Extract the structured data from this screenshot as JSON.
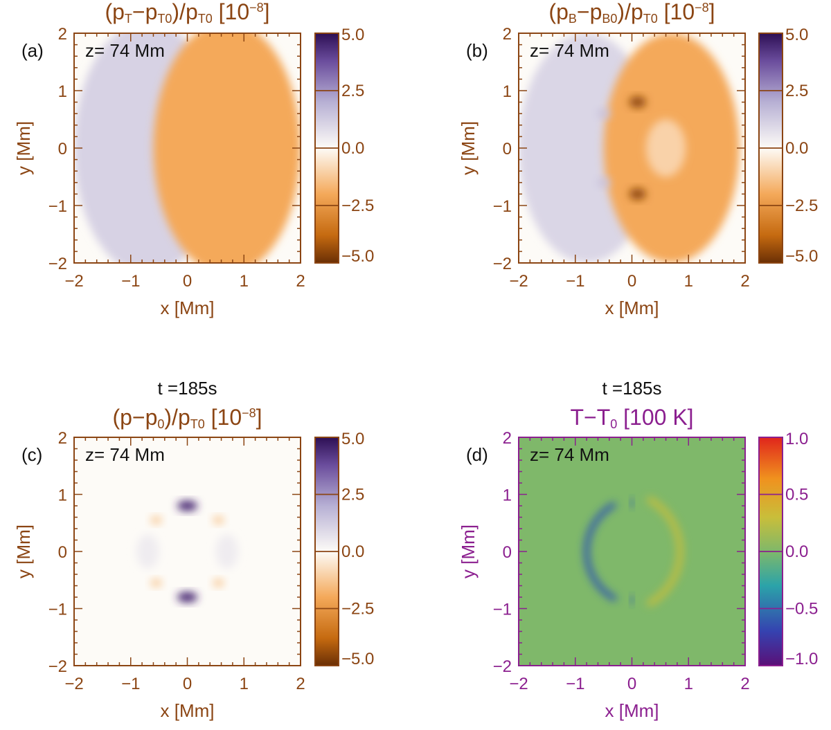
{
  "chart_data": [
    {
      "type": "heatmap",
      "panel_label": "(a)",
      "time_label": "",
      "title": "(p_T − p_T0)/p_T0 [10^−8]",
      "title_parts": {
        "open": "(p",
        "sub1": "T",
        "minus": "−p",
        "sub2": "T0",
        "slash": ")/p",
        "sub3": "T0",
        "bracket": " [10",
        "sup": "−8",
        "close": "]"
      },
      "annotation": "z= 74 Mm",
      "xlabel": "x [Mm]",
      "ylabel": "y [Mm]",
      "xlim": [
        -2,
        2
      ],
      "ylim": [
        -2,
        2
      ],
      "x_ticks": [
        "−2",
        "−1",
        "0",
        "1",
        "2"
      ],
      "y_ticks": [
        "−2",
        "−1",
        "0",
        "1",
        "2"
      ],
      "colorbar": {
        "range": [
          -5.0,
          5.0
        ],
        "ticks": [
          "5.0",
          "2.5",
          "0.0",
          "−2.5",
          "−5.0"
        ],
        "colormap": "PuOr"
      },
      "features": [
        {
          "kind": "blob",
          "x": -0.7,
          "y": 0.0,
          "sigma_x": 1.3,
          "sigma_y": 2.2,
          "value": 1.1
        },
        {
          "kind": "blob",
          "x": 0.7,
          "y": 0.0,
          "sigma_x": 1.3,
          "sigma_y": 2.2,
          "value": -2.0
        }
      ],
      "accent_color": "#8b4513"
    },
    {
      "type": "heatmap",
      "panel_label": "(b)",
      "time_label": "",
      "title": "(p_B − p_B0)/p_T0 [10^−8]",
      "title_parts": {
        "open": "(p",
        "sub1": "B",
        "minus": "−p",
        "sub2": "B0",
        "slash": ")/p",
        "sub3": "T0",
        "bracket": " [10",
        "sup": "−8",
        "close": "]"
      },
      "annotation": "z= 74 Mm",
      "xlabel": "x [Mm]",
      "ylabel": "y [Mm]",
      "xlim": [
        -2,
        2
      ],
      "ylim": [
        -2,
        2
      ],
      "x_ticks": [
        "−2",
        "−1",
        "0",
        "1",
        "2"
      ],
      "y_ticks": [
        "−2",
        "−1",
        "0",
        "1",
        "2"
      ],
      "colorbar": {
        "range": [
          -5.0,
          5.0
        ],
        "ticks": [
          "5.0",
          "2.5",
          "0.0",
          "−2.5",
          "−5.0"
        ],
        "colormap": "PuOr"
      },
      "features": [
        {
          "kind": "blob",
          "x": -0.8,
          "y": 0.0,
          "sigma_x": 1.2,
          "sigma_y": 2.0,
          "value": 1.0
        },
        {
          "kind": "blob",
          "x": 0.7,
          "y": 0.0,
          "sigma_x": 1.2,
          "sigma_y": 2.0,
          "value": -2.0
        },
        {
          "kind": "blob",
          "x": 0.6,
          "y": 0.0,
          "sigma_x": 0.35,
          "sigma_y": 0.5,
          "value": -1.0
        },
        {
          "kind": "blob",
          "x": 0.1,
          "y": 0.8,
          "sigma_x": 0.15,
          "sigma_y": 0.1,
          "value": -4.5
        },
        {
          "kind": "blob",
          "x": 0.1,
          "y": -0.8,
          "sigma_x": 0.15,
          "sigma_y": 0.1,
          "value": -4.5
        },
        {
          "kind": "blob",
          "x": -0.5,
          "y": 0.6,
          "sigma_x": 0.12,
          "sigma_y": 0.08,
          "value": 1.5
        },
        {
          "kind": "blob",
          "x": -0.5,
          "y": -0.6,
          "sigma_x": 0.12,
          "sigma_y": 0.08,
          "value": 1.5
        }
      ],
      "accent_color": "#8b4513"
    },
    {
      "type": "heatmap",
      "panel_label": "(c)",
      "time_label": "t =185s",
      "title": "(p − p_0)/p_T0 [10^−8]",
      "title_parts": {
        "open": "(p",
        "sub1": "",
        "minus": "−p",
        "sub2": "0",
        "slash": ")/p",
        "sub3": "T0",
        "bracket": " [10",
        "sup": "−8",
        "close": "]"
      },
      "annotation": "z= 74 Mm",
      "xlabel": "x [Mm]",
      "ylabel": "y [Mm]",
      "xlim": [
        -2,
        2
      ],
      "ylim": [
        -2,
        2
      ],
      "x_ticks": [
        "−2",
        "−1",
        "0",
        "1",
        "2"
      ],
      "y_ticks": [
        "−2",
        "−1",
        "0",
        "1",
        "2"
      ],
      "colorbar": {
        "range": [
          -5.0,
          5.0
        ],
        "ticks": [
          "5.0",
          "2.5",
          "0.0",
          "−2.5",
          "−5.0"
        ],
        "colormap": "PuOr"
      },
      "features": [
        {
          "kind": "blob",
          "x": 0.0,
          "y": 0.8,
          "sigma_x": 0.18,
          "sigma_y": 0.09,
          "value": 4.5
        },
        {
          "kind": "blob",
          "x": 0.0,
          "y": -0.8,
          "sigma_x": 0.18,
          "sigma_y": 0.09,
          "value": 4.5
        },
        {
          "kind": "blob",
          "x": -0.55,
          "y": 0.55,
          "sigma_x": 0.1,
          "sigma_y": 0.07,
          "value": -1.2
        },
        {
          "kind": "blob",
          "x": 0.55,
          "y": 0.55,
          "sigma_x": 0.1,
          "sigma_y": 0.07,
          "value": -1.2
        },
        {
          "kind": "blob",
          "x": -0.55,
          "y": -0.55,
          "sigma_x": 0.1,
          "sigma_y": 0.07,
          "value": -1.2
        },
        {
          "kind": "blob",
          "x": 0.55,
          "y": -0.55,
          "sigma_x": 0.1,
          "sigma_y": 0.07,
          "value": -1.2
        },
        {
          "kind": "blob",
          "x": -0.7,
          "y": 0.0,
          "sigma_x": 0.2,
          "sigma_y": 0.3,
          "value": 0.4
        },
        {
          "kind": "blob",
          "x": 0.7,
          "y": 0.0,
          "sigma_x": 0.2,
          "sigma_y": 0.3,
          "value": 0.4
        }
      ],
      "accent_color": "#8b4513"
    },
    {
      "type": "heatmap",
      "panel_label": "(d)",
      "time_label": "t =185s",
      "title": "T − T_0 [100 K]",
      "title_parts": {
        "open": "T",
        "sub1": "",
        "minus": "−T",
        "sub2": "0",
        "slash": "",
        "sub3": "",
        "bracket": " [100 K",
        "sup": "",
        "close": "]"
      },
      "annotation": "z= 74 Mm",
      "xlabel": "x [Mm]",
      "ylabel": "y [Mm]",
      "xlim": [
        -2,
        2
      ],
      "ylim": [
        -2,
        2
      ],
      "x_ticks": [
        "−2",
        "−1",
        "0",
        "1",
        "2"
      ],
      "y_ticks": [
        "−2",
        "−1",
        "0",
        "1",
        "2"
      ],
      "colorbar": {
        "range": [
          -1.0,
          1.0
        ],
        "ticks": [
          "1.0",
          "0.5",
          "0.0",
          "−0.5",
          "−1.0"
        ],
        "colormap": "rainbow"
      },
      "features": [
        {
          "kind": "arc",
          "x": 0.15,
          "y": 0.0,
          "radius": 0.95,
          "width": 0.1,
          "side": "left",
          "value": -0.6
        },
        {
          "kind": "arc",
          "x": -0.2,
          "y": 0.0,
          "radius": 1.05,
          "width": 0.12,
          "side": "right",
          "value": 0.25
        },
        {
          "kind": "blob",
          "x": 0.0,
          "y": 0.85,
          "sigma_x": 0.03,
          "sigma_y": 0.08,
          "value": -0.6
        },
        {
          "kind": "blob",
          "x": 0.0,
          "y": -0.85,
          "sigma_x": 0.03,
          "sigma_y": 0.08,
          "value": -0.6
        }
      ],
      "accent_color": "#8b1f8f"
    }
  ]
}
